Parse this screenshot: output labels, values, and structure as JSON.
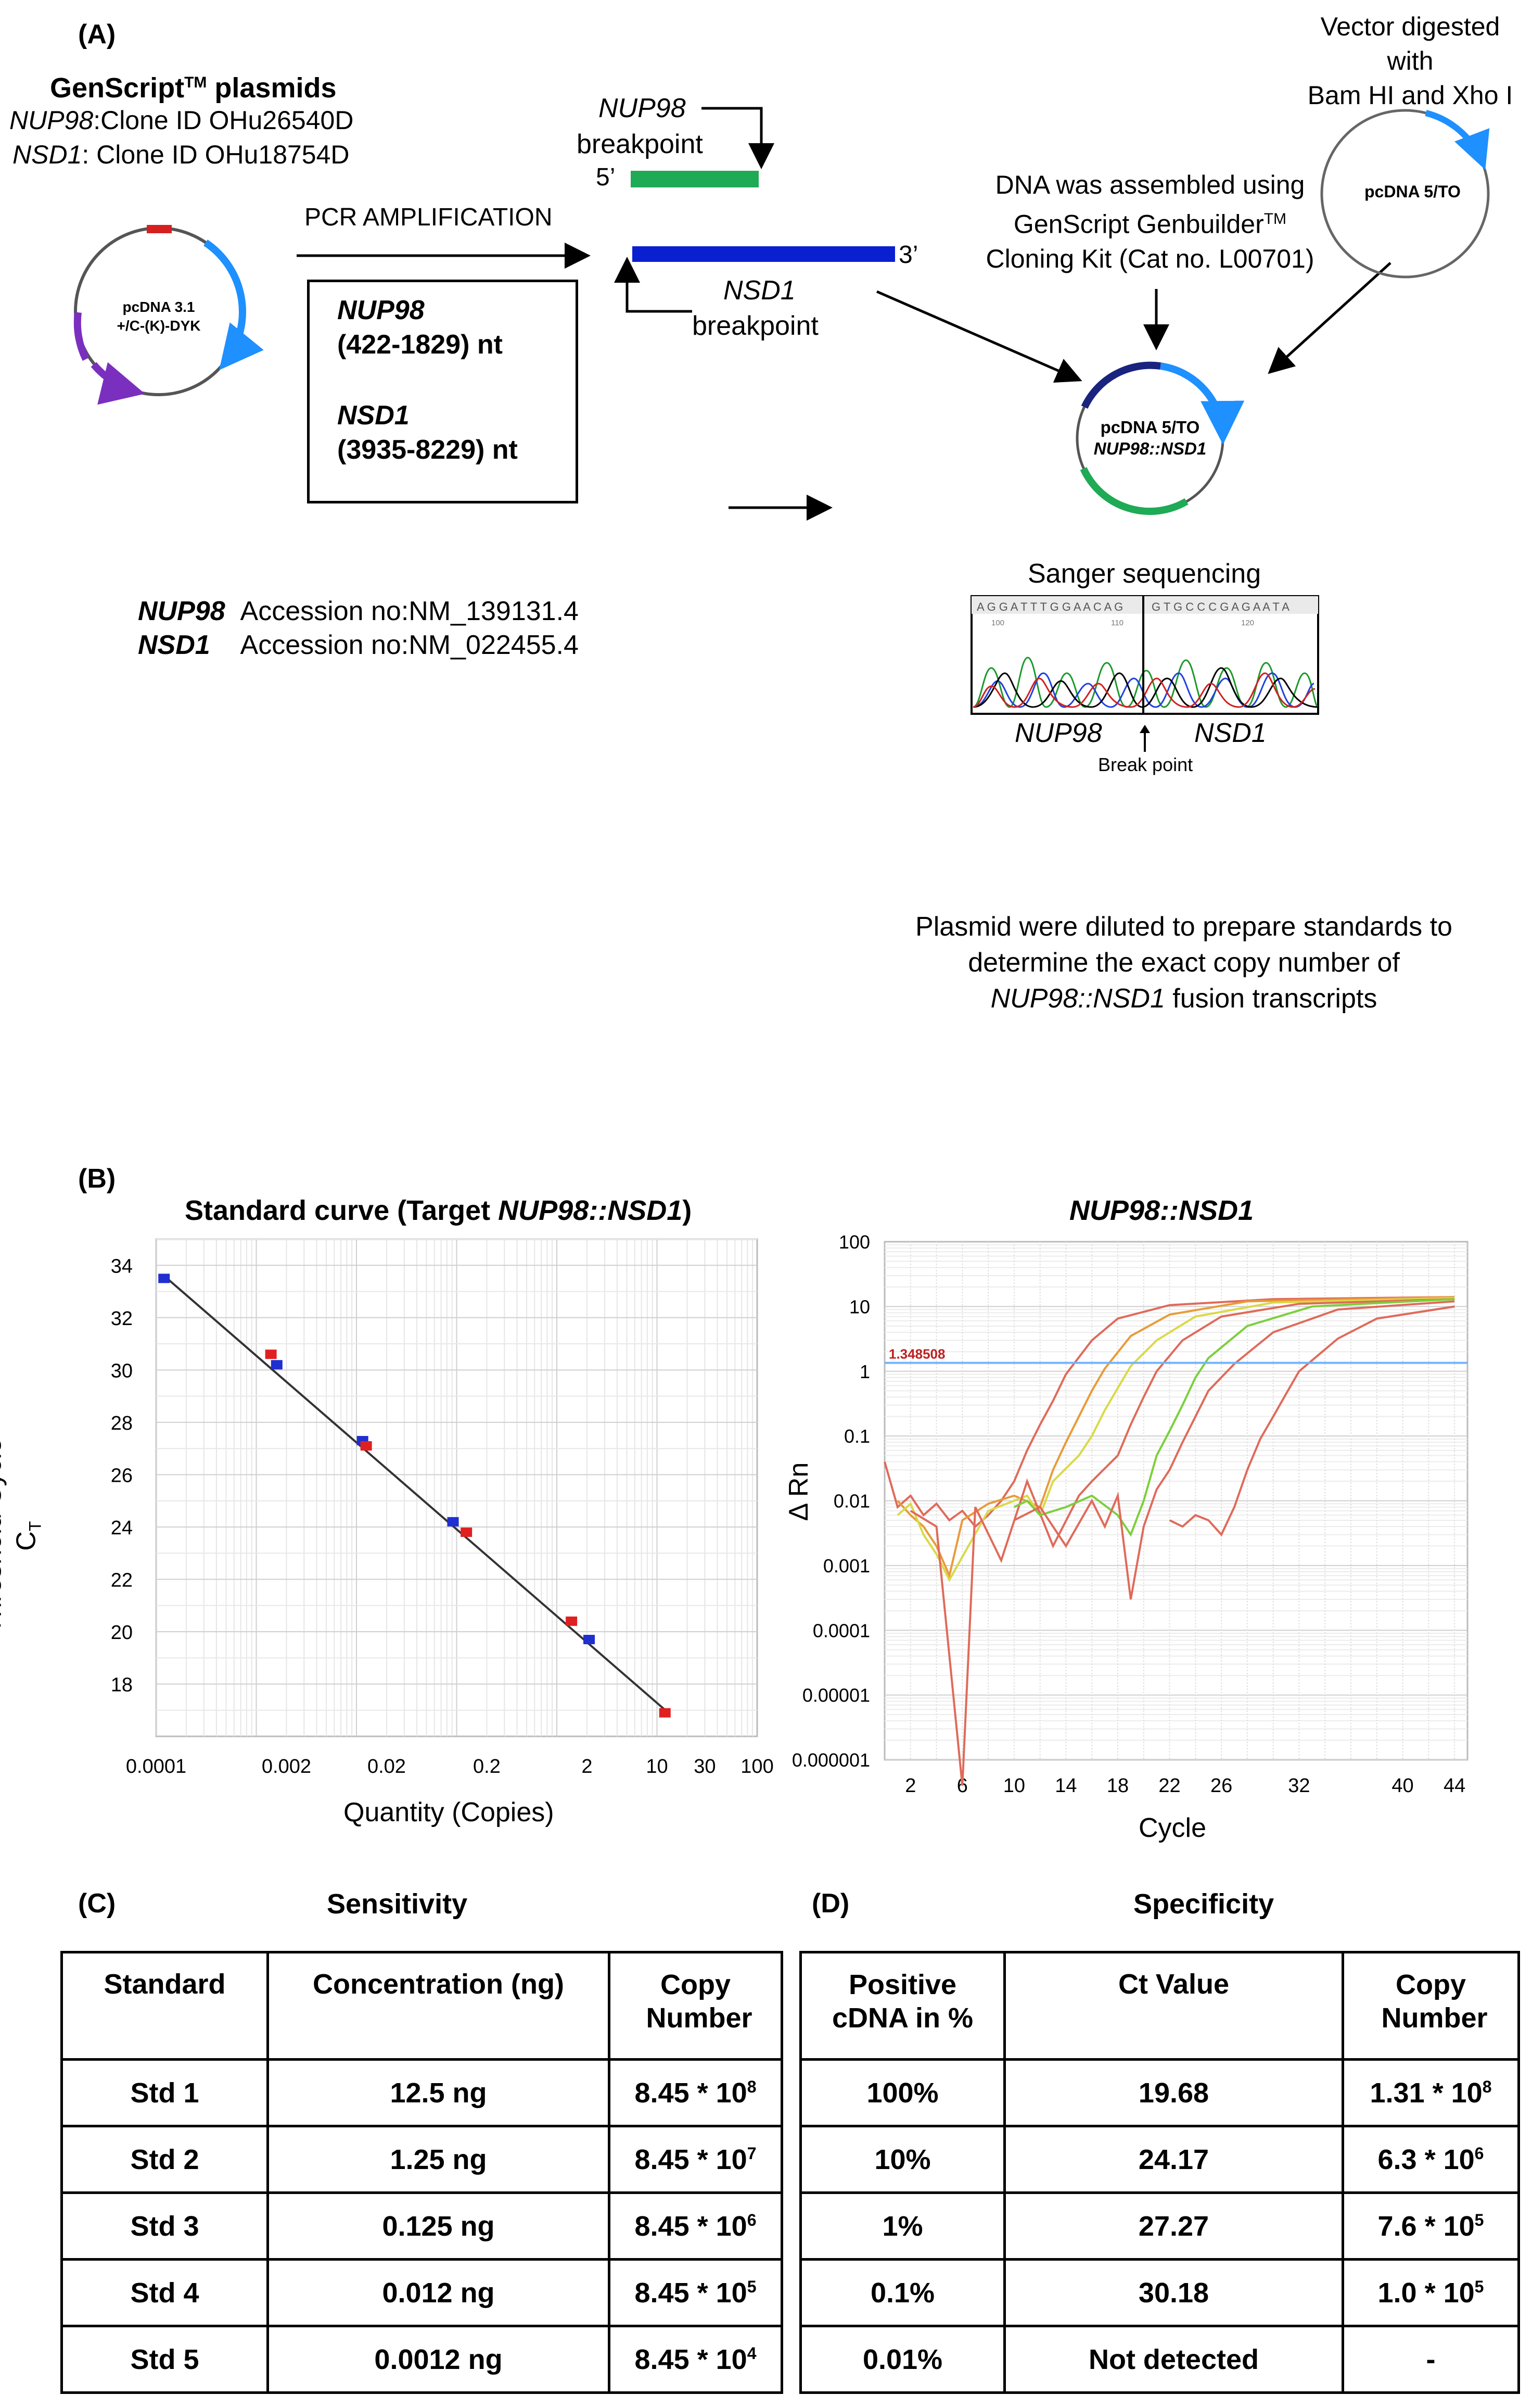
{
  "panelA": {
    "label": "(A)",
    "genscript_title": "GenScript",
    "genscript_tm": "TM",
    "genscript_suffix": " plasmids",
    "nup98_clone_gene": "NUP98",
    "nup98_clone_text": ":Clone ID OHu26540D",
    "nsd1_clone_gene": "NSD1",
    "nsd1_clone_text": ": Clone ID OHu18754D",
    "plasmid1_line1": "pcDNA 3.1",
    "plasmid1_line2": "+/C-(K)-DYK",
    "pcr_label": "PCR  AMPLIFICATION",
    "nup98_bp_gene": "NUP98",
    "nup98_bp_word": "breakpoint",
    "five_prime": "5’",
    "three_prime": "3’",
    "nsd1_bp_gene": "NSD1",
    "nsd1_bp_word": "breakpoint",
    "box_nup98": "NUP98",
    "box_nup98_range": "(422-1829) nt",
    "box_nsd1": "NSD1",
    "box_nsd1_range": "(3935-8229) nt",
    "vector_line1": "Vector digested",
    "vector_line2": "with",
    "vector_line3": "Bam HI and Xho I",
    "vector_plasmid": "pcDNA 5/TO",
    "assembly_line1": "DNA was assembled using",
    "assembly_line2": "GenScript  Genbuilder",
    "assembly_tm": "TM",
    "assembly_line3": "Cloning Kit (Cat no. L00701)",
    "fusion_plasmid_line1": "pcDNA 5/TO",
    "fusion_plasmid_line2": "NUP98::NSD1",
    "accession_nup98_gene": "NUP98",
    "accession_nup98_text": "Accession no:NM_139131.4",
    "accession_nsd1_gene": "NSD1",
    "accession_nsd1_text": "Accession no:NM_022455.4",
    "sanger_title": "Sanger sequencing",
    "sanger_seq_left": "A G G A T T T G G A A C A G",
    "sanger_seq_right": "G T G C C C G A G A A T A",
    "sanger_ticks": [
      "100",
      "110",
      "120"
    ],
    "sanger_left_gene": "NUP98",
    "sanger_right_gene": "NSD1",
    "break_point": "Break point",
    "standards_line1": "Plasmid were diluted to prepare standards to",
    "standards_line2": "determine the exact copy number of",
    "standards_line3_gene": "NUP98::NSD1",
    "standards_line3_text": " fusion transcripts"
  },
  "panelB": {
    "label": "(B)",
    "chart_data": [
      {
        "type": "scatter",
        "title_prefix": "Standard curve (Target ",
        "title_gene": "NUP98::NSD1",
        "title_suffix": ")",
        "xlabel": "Quantity (Copies)",
        "ylabel_line1": "Threshold Cycle",
        "ylabel_line2": "C",
        "ylabel_sub": "T",
        "xscale": "log",
        "xlim": [
          0.0001,
          100
        ],
        "ylim": [
          16,
          35
        ],
        "x_tick_labels": [
          {
            "v": 0.0001,
            "label": "0.0001"
          },
          {
            "v": 0.002,
            "label": "0.002"
          },
          {
            "v": 0.02,
            "label": "0.02"
          },
          {
            "v": 0.2,
            "label": "0.2"
          },
          {
            "v": 2,
            "label": "2"
          },
          {
            "v": 10,
            "label": "10"
          },
          {
            "v": 30,
            "label": "30"
          },
          {
            "v": 100,
            "label": "100"
          }
        ],
        "y_ticks": [
          18,
          20,
          22,
          24,
          26,
          28,
          30,
          32,
          34
        ],
        "fit_line": [
          [
            0.00012,
            33.6
          ],
          [
            13,
            16.9
          ]
        ],
        "series": [
          {
            "name": "standards-blue",
            "color": "#1f2fd0",
            "points": [
              [
                0.00012,
                33.5
              ],
              [
                0.0016,
                30.2
              ],
              [
                0.0115,
                27.3
              ],
              [
                0.092,
                24.2
              ],
              [
                2.1,
                19.7
              ]
            ]
          },
          {
            "name": "samples-red",
            "color": "#e02020",
            "points": [
              [
                0.0014,
                30.6
              ],
              [
                0.0125,
                27.1
              ],
              [
                0.125,
                23.8
              ],
              [
                1.4,
                20.4
              ],
              [
                12,
                16.9
              ]
            ]
          }
        ]
      },
      {
        "type": "line",
        "title": "NUP98::NSD1",
        "xlabel": "Cycle",
        "ylabel": "Δ Rn",
        "yscale": "log",
        "xlim": [
          0,
          45
        ],
        "ylim": [
          1e-06,
          100
        ],
        "y_tick_labels": [
          "100",
          "10",
          "1",
          "0.1",
          "0.01",
          "0.001",
          "0.0001",
          "0.00001",
          "0.000001"
        ],
        "x_ticks": [
          2,
          6,
          10,
          14,
          18,
          22,
          26,
          32,
          40,
          44
        ],
        "threshold": 1.348508,
        "threshold_label": "1.348508",
        "series": [
          {
            "name": "amp-1",
            "color": "#e06a5a",
            "points": [
              [
                0,
                0.04
              ],
              [
                1,
                0.008
              ],
              [
                2,
                0.012
              ],
              [
                3,
                0.006
              ],
              [
                4,
                0.009
              ],
              [
                5,
                0.005
              ],
              [
                6,
                0.007
              ],
              [
                7,
                0.004
              ],
              [
                8,
                0.006
              ],
              [
                9,
                0.01
              ],
              [
                10,
                0.02
              ],
              [
                11,
                0.06
              ],
              [
                12,
                0.15
              ],
              [
                13,
                0.35
              ],
              [
                14,
                0.9
              ],
              [
                16,
                3
              ],
              [
                18,
                6.5
              ],
              [
                22,
                10.5
              ],
              [
                30,
                13
              ],
              [
                44,
                14
              ]
            ]
          },
          {
            "name": "amp-2",
            "color": "#e89b3a",
            "points": [
              [
                1,
                0.01
              ],
              [
                2,
                0.006
              ],
              [
                3,
                0.004
              ],
              [
                4,
                0.002
              ],
              [
                5,
                0.0007
              ],
              [
                6,
                0.005
              ],
              [
                8,
                0.009
              ],
              [
                10,
                0.012
              ],
              [
                12,
                0.008
              ],
              [
                13,
                0.03
              ],
              [
                14,
                0.08
              ],
              [
                15,
                0.2
              ],
              [
                16,
                0.5
              ],
              [
                17,
                1.1
              ],
              [
                19,
                3.5
              ],
              [
                22,
                7.5
              ],
              [
                28,
                12
              ],
              [
                44,
                14
              ]
            ]
          },
          {
            "name": "amp-3",
            "color": "#d9d94a",
            "points": [
              [
                1,
                0.006
              ],
              [
                2,
                0.009
              ],
              [
                3,
                0.003
              ],
              [
                4,
                0.0015
              ],
              [
                5,
                0.0006
              ],
              [
                8,
                0.007
              ],
              [
                11,
                0.012
              ],
              [
                12,
                0.006
              ],
              [
                13,
                0.02
              ],
              [
                15,
                0.05
              ],
              [
                16,
                0.1
              ],
              [
                17,
                0.25
              ],
              [
                18,
                0.55
              ],
              [
                19,
                1.2
              ],
              [
                21,
                3
              ],
              [
                24,
                7
              ],
              [
                30,
                11.5
              ],
              [
                44,
                13.5
              ]
            ]
          },
          {
            "name": "amp-4",
            "color": "#e06a5a",
            "points": [
              [
                2,
                0.007
              ],
              [
                4,
                0.004
              ],
              [
                6,
                4e-07
              ],
              [
                7,
                0.008
              ],
              [
                9,
                0.0012
              ],
              [
                11,
                0.02
              ],
              [
                13,
                0.002
              ],
              [
                15,
                0.012
              ],
              [
                16,
                0.02
              ],
              [
                18,
                0.05
              ],
              [
                19,
                0.15
              ],
              [
                20,
                0.4
              ],
              [
                21,
                1
              ],
              [
                23,
                3
              ],
              [
                26,
                7
              ],
              [
                32,
                11
              ],
              [
                44,
                13
              ]
            ]
          },
          {
            "name": "amp-5",
            "color": "#7ccf3c",
            "points": [
              [
                10,
                0.008
              ],
              [
                11,
                0.01
              ],
              [
                12,
                0.006
              ],
              [
                14,
                0.008
              ],
              [
                16,
                0.012
              ],
              [
                18,
                0.006
              ],
              [
                19,
                0.003
              ],
              [
                20,
                0.01
              ],
              [
                21,
                0.05
              ],
              [
                22,
                0.12
              ],
              [
                23,
                0.3
              ],
              [
                24,
                0.8
              ],
              [
                25,
                1.6
              ],
              [
                28,
                5
              ],
              [
                33,
                10
              ],
              [
                44,
                13
              ]
            ]
          },
          {
            "name": "amp-6",
            "color": "#e06a5a",
            "points": [
              [
                10,
                0.005
              ],
              [
                12,
                0.008
              ],
              [
                14,
                0.002
              ],
              [
                16,
                0.01
              ],
              [
                17,
                0.004
              ],
              [
                18,
                0.012
              ],
              [
                19,
                0.0003
              ],
              [
                20,
                0.004
              ],
              [
                21,
                0.015
              ],
              [
                22,
                0.03
              ],
              [
                23,
                0.08
              ],
              [
                24,
                0.2
              ],
              [
                25,
                0.5
              ],
              [
                27,
                1.3
              ],
              [
                30,
                4
              ],
              [
                35,
                9
              ],
              [
                44,
                12
              ]
            ]
          },
          {
            "name": "amp-7",
            "color": "#e06a5a",
            "points": [
              [
                22,
                0.005
              ],
              [
                23,
                0.004
              ],
              [
                24,
                0.006
              ],
              [
                25,
                0.005
              ],
              [
                26,
                0.003
              ],
              [
                27,
                0.008
              ],
              [
                28,
                0.03
              ],
              [
                29,
                0.09
              ],
              [
                30,
                0.2
              ],
              [
                31,
                0.45
              ],
              [
                32,
                1
              ],
              [
                35,
                3.2
              ],
              [
                38,
                6.5
              ],
              [
                44,
                10
              ]
            ]
          }
        ]
      }
    ]
  },
  "panelC": {
    "label": "(C)",
    "title": "Sensitivity",
    "headers": [
      "Standard",
      "Concentration (ng)",
      "Copy Number"
    ],
    "rows": [
      {
        "std": "Std 1",
        "conc": "12.5 ng",
        "copy_base": "8.45 * 10",
        "copy_exp": "8"
      },
      {
        "std": "Std 2",
        "conc": "1.25 ng",
        "copy_base": "8.45 * 10",
        "copy_exp": "7"
      },
      {
        "std": "Std 3",
        "conc": "0.125 ng",
        "copy_base": "8.45 * 10",
        "copy_exp": "6"
      },
      {
        "std": "Std 4",
        "conc": "0.012 ng",
        "copy_base": "8.45 * 10",
        "copy_exp": "5"
      },
      {
        "std": "Std 5",
        "conc": "0.0012 ng",
        "copy_base": "8.45 * 10",
        "copy_exp": "4"
      }
    ]
  },
  "panelD": {
    "label": "(D)",
    "title": "Specificity",
    "headers": [
      "Positive cDNA in %",
      "Ct Value",
      "Copy Number"
    ],
    "rows": [
      {
        "pct": "100%",
        "ct": "19.68",
        "copy_base": "1.31 * 10",
        "copy_exp": "8"
      },
      {
        "pct": "10%",
        "ct": "24.17",
        "copy_base": "6.3 * 10",
        "copy_exp": "6"
      },
      {
        "pct": "1%",
        "ct": "27.27",
        "copy_base": "7.6 * 10",
        "copy_exp": "5"
      },
      {
        "pct": "0.1%",
        "ct": "30.18",
        "copy_base": "1.0 * 10",
        "copy_exp": "5"
      },
      {
        "pct": "0.01%",
        "ct": "Not detected",
        "copy_base": "-",
        "copy_exp": ""
      }
    ]
  }
}
